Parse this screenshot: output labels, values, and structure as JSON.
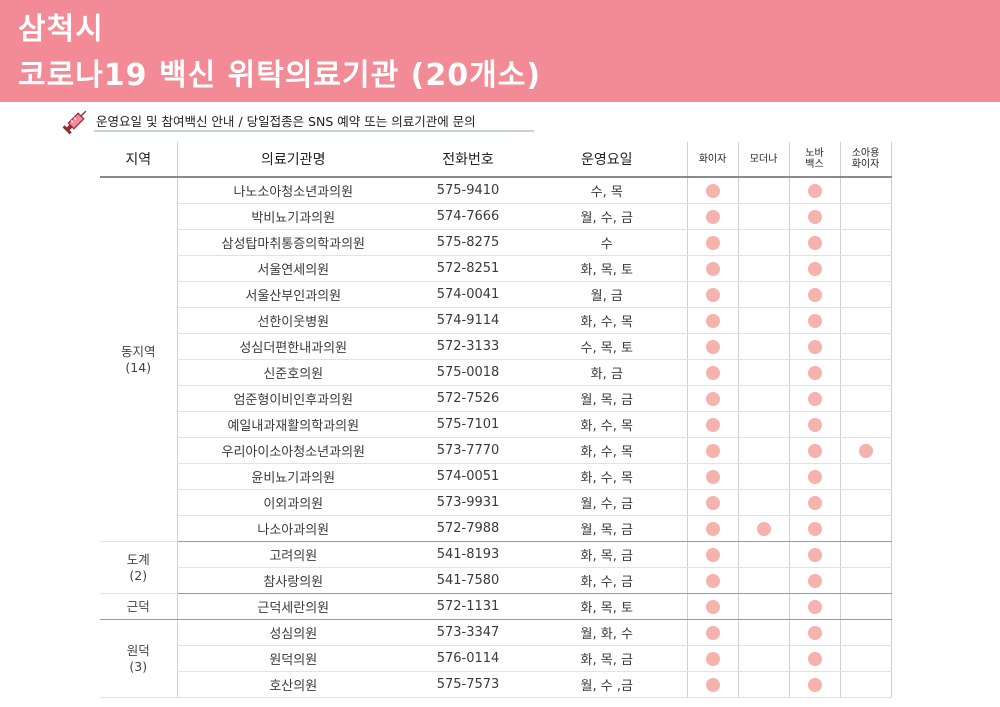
{
  "header": {
    "city": "삼척시",
    "title": "코로나19 백신 위탁의료기관 (20개소)"
  },
  "notice": "운영요일 및 참여백신 안내 / 당일접종은 SNS 예약 또는 의료기관에 문의",
  "table": {
    "columns": [
      "지역",
      "의료기관명",
      "전화번호",
      "운영요일",
      "화이자",
      "모더나",
      "노바\n백스",
      "소아용\n화이자"
    ],
    "dot_color": "#f6b2ac",
    "groups": [
      {
        "region": "동지역\n(14)",
        "rows": [
          {
            "name": "나노소아청소년과의원",
            "phone": "575-9410",
            "days": "수, 목",
            "pfizer": true,
            "moderna": false,
            "novavax": true,
            "kids_pfizer": false
          },
          {
            "name": "박비뇨기과의원",
            "phone": "574-7666",
            "days": "월, 수, 금",
            "pfizer": true,
            "moderna": false,
            "novavax": true,
            "kids_pfizer": false
          },
          {
            "name": "삼성탑마취통증의학과의원",
            "phone": "575-8275",
            "days": "수",
            "pfizer": true,
            "moderna": false,
            "novavax": true,
            "kids_pfizer": false
          },
          {
            "name": "서울연세의원",
            "phone": "572-8251",
            "days": "화, 목, 토",
            "pfizer": true,
            "moderna": false,
            "novavax": true,
            "kids_pfizer": false
          },
          {
            "name": "서울산부인과의원",
            "phone": "574-0041",
            "days": "월, 금",
            "pfizer": true,
            "moderna": false,
            "novavax": true,
            "kids_pfizer": false
          },
          {
            "name": "선한이웃병원",
            "phone": "574-9114",
            "days": "화, 수, 목",
            "pfizer": true,
            "moderna": false,
            "novavax": true,
            "kids_pfizer": false
          },
          {
            "name": "성심더편한내과의원",
            "phone": "572-3133",
            "days": "수, 목, 토",
            "pfizer": true,
            "moderna": false,
            "novavax": true,
            "kids_pfizer": false
          },
          {
            "name": "신준호의원",
            "phone": "575-0018",
            "days": "화, 금",
            "pfizer": true,
            "moderna": false,
            "novavax": true,
            "kids_pfizer": false
          },
          {
            "name": "엄준형이비인후과의원",
            "phone": "572-7526",
            "days": "월, 목, 금",
            "pfizer": true,
            "moderna": false,
            "novavax": true,
            "kids_pfizer": false
          },
          {
            "name": "예일내과재활의학과의원",
            "phone": "575-7101",
            "days": "화, 수, 목",
            "pfizer": true,
            "moderna": false,
            "novavax": true,
            "kids_pfizer": false
          },
          {
            "name": "우리아이소아청소년과의원",
            "phone": "573-7770",
            "days": "화, 수, 목",
            "pfizer": true,
            "moderna": false,
            "novavax": true,
            "kids_pfizer": true
          },
          {
            "name": "윤비뇨기과의원",
            "phone": "574-0051",
            "days": "화, 수, 목",
            "pfizer": true,
            "moderna": false,
            "novavax": true,
            "kids_pfizer": false
          },
          {
            "name": "이외과의원",
            "phone": "573-9931",
            "days": "월, 수, 금",
            "pfizer": true,
            "moderna": false,
            "novavax": true,
            "kids_pfizer": false
          },
          {
            "name": "나소아과의원",
            "phone": "572-7988",
            "days": "월, 목, 금",
            "pfizer": true,
            "moderna": true,
            "novavax": true,
            "kids_pfizer": false
          }
        ]
      },
      {
        "region": "도계\n(2)",
        "rows": [
          {
            "name": "고려의원",
            "phone": "541-8193",
            "days": "화, 목, 금",
            "pfizer": true,
            "moderna": false,
            "novavax": true,
            "kids_pfizer": false
          },
          {
            "name": "참사랑의원",
            "phone": "541-7580",
            "days": "화, 수, 금",
            "pfizer": true,
            "moderna": false,
            "novavax": true,
            "kids_pfizer": false
          }
        ]
      },
      {
        "region": "근덕",
        "rows": [
          {
            "name": "근덕세란의원",
            "phone": "572-1131",
            "days": "화, 목, 토",
            "pfizer": true,
            "moderna": false,
            "novavax": true,
            "kids_pfizer": false
          }
        ]
      },
      {
        "region": "원덕\n(3)",
        "rows": [
          {
            "name": "성심의원",
            "phone": "573-3347",
            "days": "월, 화, 수",
            "pfizer": true,
            "moderna": false,
            "novavax": true,
            "kids_pfizer": false
          },
          {
            "name": "원덕의원",
            "phone": "576-0114",
            "days": "화, 목, 금",
            "pfizer": true,
            "moderna": false,
            "novavax": true,
            "kids_pfizer": false
          },
          {
            "name": "호산의원",
            "phone": "575-7573",
            "days": "월, 수 ,금",
            "pfizer": true,
            "moderna": false,
            "novavax": true,
            "kids_pfizer": false
          }
        ]
      }
    ]
  }
}
